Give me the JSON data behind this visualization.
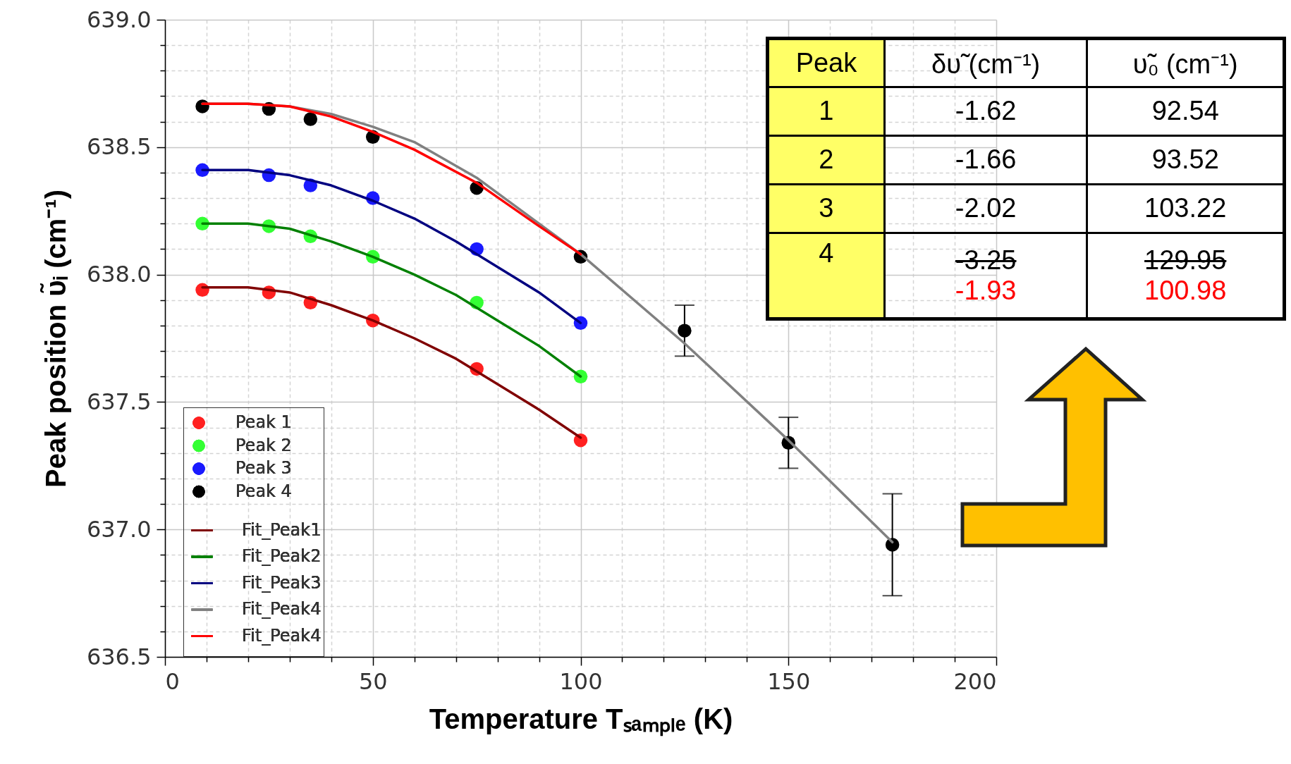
{
  "chart_data": {
    "type": "scatter",
    "xlabel": "Temperature Tₛₐₘₚₗₑ (K)",
    "ylabel": "Peak position υ̃ᵢ (cm⁻¹)",
    "xlim": [
      0,
      200
    ],
    "ylim": [
      636.5,
      639.0
    ],
    "xticks": [
      0,
      {
        "value": 10,
        "label": null
      },
      {
        "value": 20,
        "label": null
      },
      {
        "value": 30,
        "label": null
      },
      {
        "value": 40,
        "label": null
      },
      50,
      {
        "value": 60,
        "label": null
      },
      {
        "value": 70,
        "label": null
      },
      {
        "value": 80,
        "label": null
      },
      {
        "value": 90,
        "label": null
      },
      100,
      {
        "value": 110,
        "label": null
      },
      {
        "value": 120,
        "label": null
      },
      {
        "value": 130,
        "label": null
      },
      {
        "value": 140,
        "label": null
      },
      150,
      {
        "value": 160,
        "label": null
      },
      {
        "value": 170,
        "label": null
      },
      {
        "value": 180,
        "label": null
      },
      {
        "value": 190,
        "label": null
      },
      200
    ],
    "yticks": [
      {
        "value": 636.5,
        "label": "636.5"
      },
      {
        "value": 636.6,
        "label": null
      },
      {
        "value": 636.7,
        "label": null
      },
      {
        "value": 636.8,
        "label": null
      },
      {
        "value": 636.9,
        "label": null
      },
      {
        "value": 637.0,
        "label": "637.0"
      },
      {
        "value": 637.1,
        "label": null
      },
      {
        "value": 637.2,
        "label": null
      },
      {
        "value": 637.3,
        "label": null
      },
      {
        "value": 637.4,
        "label": null
      },
      {
        "value": 637.5,
        "label": "637.5"
      },
      {
        "value": 637.6,
        "label": null
      },
      {
        "value": 637.7,
        "label": null
      },
      {
        "value": 637.8,
        "label": null
      },
      {
        "value": 637.9,
        "label": null
      },
      {
        "value": 638.0,
        "label": "638.0"
      },
      {
        "value": 638.1,
        "label": null
      },
      {
        "value": 638.2,
        "label": null
      },
      {
        "value": 638.3,
        "label": null
      },
      {
        "value": 638.4,
        "label": null
      },
      {
        "value": 638.5,
        "label": "638.5"
      },
      {
        "value": 638.6,
        "label": null
      },
      {
        "value": 638.7,
        "label": null
      },
      {
        "value": 638.8,
        "label": null
      },
      {
        "value": 638.9,
        "label": null
      },
      {
        "value": 639.0,
        "label": "639.0"
      }
    ],
    "grid": true,
    "legend": "bottom left",
    "line_style": "solid",
    "series": [
      {
        "name": "Peak 1",
        "marker": "circle",
        "color": "#ff2020",
        "x": [
          9,
          25,
          35,
          50,
          75,
          100
        ],
        "values": [
          637.94,
          637.93,
          637.89,
          637.82,
          637.63,
          637.35
        ]
      },
      {
        "name": "Peak 2",
        "marker": "circle",
        "color": "#33ff33",
        "x": [
          9,
          25,
          35,
          50,
          75,
          100
        ],
        "values": [
          638.2,
          638.19,
          638.15,
          638.07,
          637.89,
          637.6
        ]
      },
      {
        "name": "Peak 3",
        "marker": "circle",
        "color": "#1a1aff",
        "x": [
          9,
          25,
          35,
          50,
          75,
          100
        ],
        "values": [
          638.41,
          638.39,
          638.35,
          638.3,
          638.1,
          637.81
        ]
      },
      {
        "name": "Peak 4",
        "marker": "circle",
        "color": "#000000",
        "x": [
          9,
          25,
          35,
          50,
          75,
          100,
          125,
          150,
          175
        ],
        "values": [
          638.66,
          638.65,
          638.61,
          638.54,
          638.34,
          638.07,
          637.78,
          637.34,
          636.94
        ],
        "errors": [
          null,
          null,
          null,
          null,
          null,
          null,
          0.1,
          0.1,
          0.2
        ]
      },
      {
        "name": "Fit_Peak1",
        "type": "line",
        "color": "#800000",
        "x": [
          9,
          20,
          30,
          40,
          50,
          60,
          70,
          80,
          90,
          100
        ],
        "values": [
          637.95,
          637.95,
          637.93,
          637.88,
          637.82,
          637.75,
          637.67,
          637.57,
          637.47,
          637.36
        ]
      },
      {
        "name": "Fit_Peak2",
        "type": "line",
        "color": "#008000",
        "x": [
          9,
          20,
          30,
          40,
          50,
          60,
          70,
          80,
          90,
          100
        ],
        "values": [
          638.2,
          638.2,
          638.18,
          638.13,
          638.07,
          638.0,
          637.92,
          637.82,
          637.72,
          637.6
        ]
      },
      {
        "name": "Fit_Peak3",
        "type": "line",
        "color": "#000080",
        "x": [
          9,
          20,
          30,
          40,
          50,
          60,
          70,
          80,
          90,
          100
        ],
        "values": [
          638.41,
          638.41,
          638.39,
          638.35,
          638.29,
          638.22,
          638.13,
          638.03,
          637.93,
          637.81
        ]
      },
      {
        "name": "Fit_Peak4",
        "type": "line",
        "color": "#808080",
        "x": [
          9,
          20,
          30,
          40,
          50,
          60,
          75,
          100,
          125,
          150,
          175
        ],
        "values": [
          638.67,
          638.67,
          638.66,
          638.63,
          638.58,
          638.52,
          638.38,
          638.08,
          637.73,
          637.35,
          636.95
        ]
      },
      {
        "name": "Fit_Peak4",
        "type": "line",
        "color": "#ff0000",
        "x": [
          9,
          20,
          30,
          40,
          50,
          60,
          75,
          90,
          100
        ],
        "values": [
          638.67,
          638.67,
          638.66,
          638.62,
          638.56,
          638.49,
          638.36,
          638.19,
          638.08
        ]
      }
    ],
    "annotations": [
      "Peak",
      "δυ̃ (cm⁻¹)",
      "υ̃₀ (cm⁻¹)",
      "1",
      "-1.62",
      "92.54",
      "2",
      "-1.66",
      "93.52",
      "3",
      "-2.02",
      "103.22",
      "4",
      "-3.25",
      "129.95",
      "-1.93",
      "100.98"
    ]
  }
}
